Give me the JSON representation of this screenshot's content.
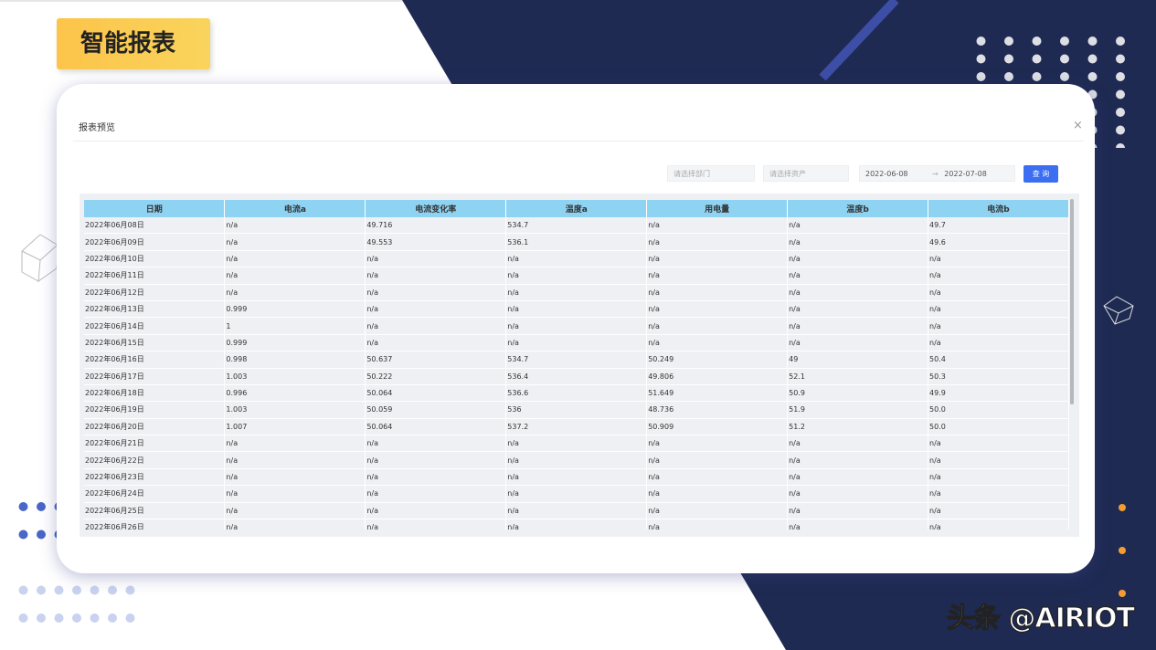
{
  "header": {
    "title": "智能报表"
  },
  "dialog": {
    "title": "报表预览",
    "close": "×"
  },
  "filters": {
    "department": "请选择部门",
    "asset": "请选择资产",
    "start_date": "2022-06-08",
    "separator": "→",
    "end_date": "2022-07-08",
    "button": "查 询"
  },
  "table": {
    "columns": [
      "日期",
      "电流a",
      "电流变化率",
      "温度a",
      "用电量",
      "温度b",
      "电流b"
    ],
    "rows": [
      [
        "2022年06月08日",
        "n/a",
        "49.716",
        "534.7",
        "n/a",
        "n/a",
        "49.7"
      ],
      [
        "2022年06月09日",
        "n/a",
        "49.553",
        "536.1",
        "n/a",
        "n/a",
        "49.6"
      ],
      [
        "2022年06月10日",
        "n/a",
        "n/a",
        "n/a",
        "n/a",
        "n/a",
        "n/a"
      ],
      [
        "2022年06月11日",
        "n/a",
        "n/a",
        "n/a",
        "n/a",
        "n/a",
        "n/a"
      ],
      [
        "2022年06月12日",
        "n/a",
        "n/a",
        "n/a",
        "n/a",
        "n/a",
        "n/a"
      ],
      [
        "2022年06月13日",
        "0.999",
        "n/a",
        "n/a",
        "n/a",
        "n/a",
        "n/a"
      ],
      [
        "2022年06月14日",
        "1",
        "n/a",
        "n/a",
        "n/a",
        "n/a",
        "n/a"
      ],
      [
        "2022年06月15日",
        "0.999",
        "n/a",
        "n/a",
        "n/a",
        "n/a",
        "n/a"
      ],
      [
        "2022年06月16日",
        "0.998",
        "50.637",
        "534.7",
        "50.249",
        "49",
        "50.4"
      ],
      [
        "2022年06月17日",
        "1.003",
        "50.222",
        "536.4",
        "49.806",
        "52.1",
        "50.3"
      ],
      [
        "2022年06月18日",
        "0.996",
        "50.064",
        "536.6",
        "51.649",
        "50.9",
        "49.9"
      ],
      [
        "2022年06月19日",
        "1.003",
        "50.059",
        "536",
        "48.736",
        "51.9",
        "50.0"
      ],
      [
        "2022年06月20日",
        "1.007",
        "50.064",
        "537.2",
        "50.909",
        "51.2",
        "50.0"
      ],
      [
        "2022年06月21日",
        "n/a",
        "n/a",
        "n/a",
        "n/a",
        "n/a",
        "n/a"
      ],
      [
        "2022年06月22日",
        "n/a",
        "n/a",
        "n/a",
        "n/a",
        "n/a",
        "n/a"
      ],
      [
        "2022年06月23日",
        "n/a",
        "n/a",
        "n/a",
        "n/a",
        "n/a",
        "n/a"
      ],
      [
        "2022年06月24日",
        "n/a",
        "n/a",
        "n/a",
        "n/a",
        "n/a",
        "n/a"
      ],
      [
        "2022年06月25日",
        "n/a",
        "n/a",
        "n/a",
        "n/a",
        "n/a",
        "n/a"
      ],
      [
        "2022年06月26日",
        "n/a",
        "n/a",
        "n/a",
        "n/a",
        "n/a",
        "n/a"
      ]
    ]
  },
  "watermark": "头条 @AIRIOT"
}
